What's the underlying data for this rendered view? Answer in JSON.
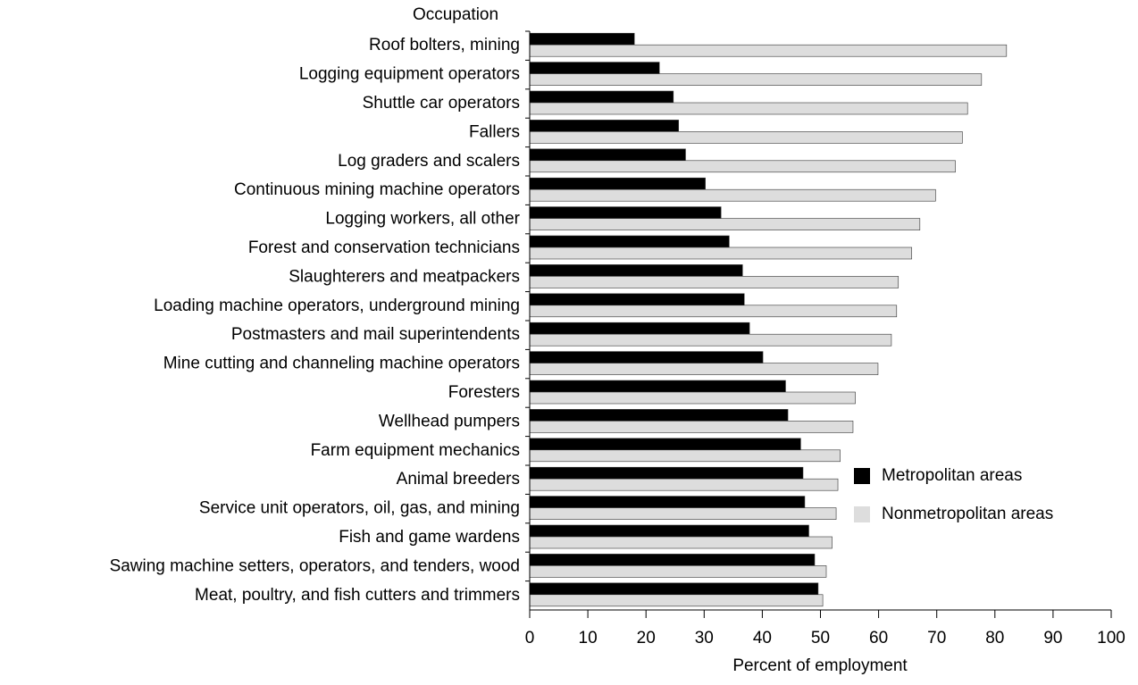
{
  "chart_data": {
    "type": "hbar",
    "y_axis_title": "Occupation",
    "x_axis_title": "Percent of employment",
    "categories": [
      "Roof bolters, mining",
      "Logging equipment operators",
      "Shuttle car operators",
      "Fallers",
      "Log graders and scalers",
      "Continuous mining machine operators",
      "Logging workers, all other",
      "Forest and conservation technicians",
      "Slaughterers and meatpackers",
      "Loading machine operators, underground mining",
      "Postmasters and mail superintendents",
      "Mine cutting and channeling machine operators",
      "Foresters",
      "Wellhead pumpers",
      "Farm equipment mechanics",
      "Animal breeders",
      "Service unit operators, oil, gas, and mining",
      "Fish and game wardens",
      "Sawing machine setters, operators, and tenders, wood",
      "Meat, poultry, and fish cutters and trimmers"
    ],
    "series": [
      {
        "name": "Metropolitan areas",
        "color": "#000000",
        "values": [
          18.0,
          22.3,
          24.7,
          25.6,
          26.8,
          30.2,
          32.9,
          34.3,
          36.6,
          36.9,
          37.8,
          40.1,
          44.0,
          44.4,
          46.6,
          47.0,
          47.3,
          48.0,
          49.0,
          49.6
        ]
      },
      {
        "name": "Nonmetropolitan areas",
        "color": "#dddddd",
        "values": [
          82.0,
          77.7,
          75.3,
          74.4,
          73.2,
          69.8,
          67.1,
          65.7,
          63.4,
          63.1,
          62.2,
          59.9,
          56.0,
          55.6,
          53.4,
          53.0,
          52.7,
          52.0,
          51.0,
          50.4
        ]
      }
    ],
    "xlim": [
      0,
      100
    ],
    "xticks": [
      0,
      10,
      20,
      30,
      40,
      50,
      60,
      70,
      80,
      90,
      100
    ]
  }
}
